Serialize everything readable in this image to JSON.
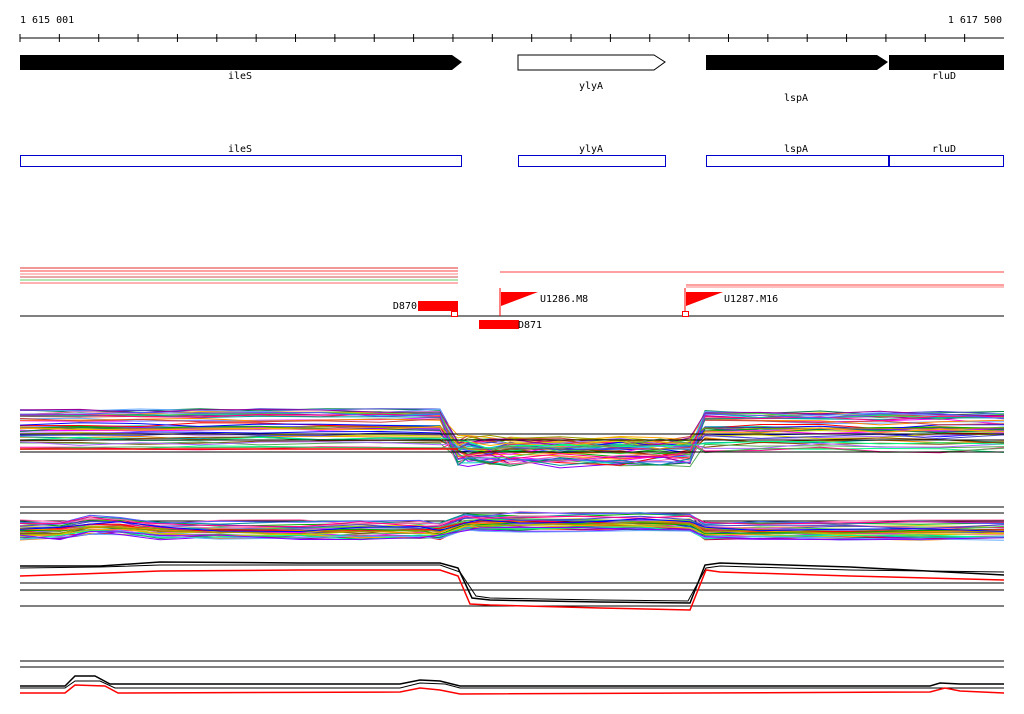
{
  "ruler": {
    "start_label": "1 615 001",
    "end_label": "1 617 500"
  },
  "genes": [
    {
      "name": "ileS",
      "strand": "+",
      "filled": true
    },
    {
      "name": "ylyA",
      "strand": "+",
      "filled": false
    },
    {
      "name": "lspA",
      "strand": "+",
      "filled": true
    },
    {
      "name": "rluD",
      "strand": "+",
      "filled": true
    }
  ],
  "annotation_boxes": [
    {
      "name": "ileS"
    },
    {
      "name": "ylyA"
    },
    {
      "name": "lspA"
    },
    {
      "name": "rluD"
    }
  ],
  "features": [
    {
      "label": "D870",
      "kind": "block"
    },
    {
      "label": "D871",
      "kind": "block"
    },
    {
      "label": "U1286.M8",
      "kind": "flag"
    },
    {
      "label": "U1287.M16",
      "kind": "flag"
    }
  ],
  "colors": {
    "gene_fill": "#000000",
    "box_outline": "#0000cc",
    "feature": "#ff0000",
    "trace_primary": "#000000",
    "trace_secondary": "#ff0000"
  }
}
